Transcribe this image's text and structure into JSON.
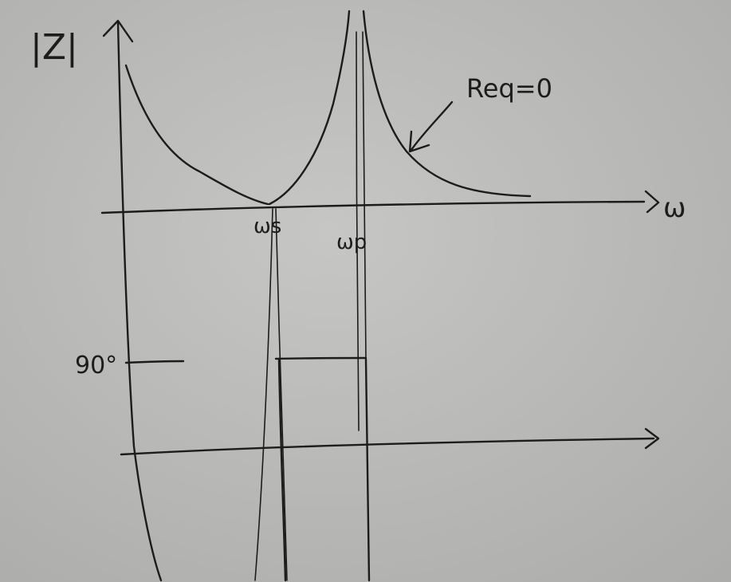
{
  "diagram": {
    "magnitude_label": "|Z|",
    "omega_axis_label": "ω",
    "series_resonance_label": "ωs",
    "parallel_resonance_label": "ωp",
    "annotation": "Req=0",
    "phase_label": "90°"
  },
  "colors": {
    "paper": "#b9b9b7",
    "ink": "#1c1c1c"
  }
}
